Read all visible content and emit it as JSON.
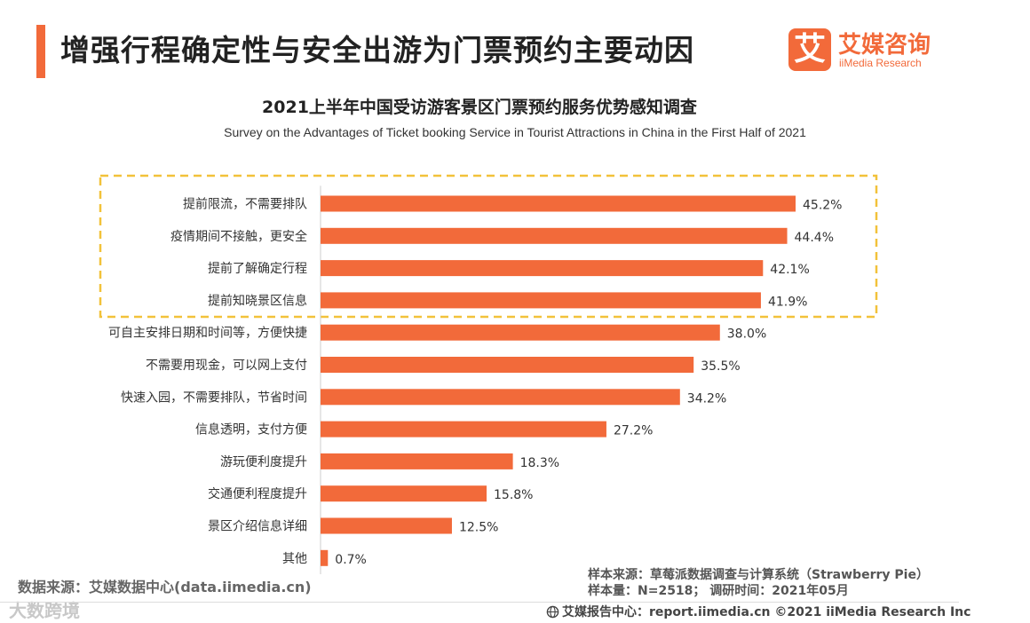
{
  "header": {
    "title": "增强行程确定性与安全出游为门票预约主要动因",
    "logo_mark": "艾",
    "logo_cn": "艾媒咨询",
    "logo_en": "iiMedia Research"
  },
  "colors": {
    "accent": "#f26a3a",
    "bar": "#f26a3a",
    "highlight_box": "#f2c23a"
  },
  "chart_data": {
    "type": "bar",
    "orientation": "horizontal",
    "title": "2021上半年中国受访游客景区门票预约服务优势感知调查",
    "subtitle": "Survey on the Advantages of  Ticket booking Service in Tourist Attractions in China in the First Half of 2021",
    "xlabel": "",
    "ylabel": "",
    "unit": "%",
    "xlim": [
      0,
      50
    ],
    "highlighted_count": 4,
    "categories": [
      "提前限流，不需要排队",
      "疫情期间不接触，更安全",
      "提前了解确定行程",
      "提前知晓景区信息",
      "可自主安排日期和时间等，方便快捷",
      "不需要用现金，可以网上支付",
      "快速入园，不需要排队，节省时间",
      "信息透明，支付方便",
      "游玩便利度提升",
      "交通便利程度提升",
      "景区介绍信息详细",
      "其他"
    ],
    "values": [
      45.2,
      44.4,
      42.1,
      41.9,
      38.0,
      35.5,
      34.2,
      27.2,
      18.3,
      15.8,
      12.5,
      0.7
    ],
    "value_labels": [
      "45.2%",
      "44.4%",
      "42.1%",
      "41.9%",
      "38.0%",
      "35.5%",
      "34.2%",
      "27.2%",
      "18.3%",
      "15.8%",
      "12.5%",
      "0.7%"
    ]
  },
  "sources": {
    "data_source": "数据来源：艾媒数据中心(data.iimedia.cn)",
    "sample_source": "样本来源：草莓派数据调查与计算系统（Strawberry  Pie）",
    "sample_size": "样本量：N=2518；  调研时间：2021年05月"
  },
  "watermark": "大数跨境",
  "footer": {
    "text": "艾媒报告中心：report.iimedia.cn   ©2021  iiMedia Research  Inc"
  }
}
